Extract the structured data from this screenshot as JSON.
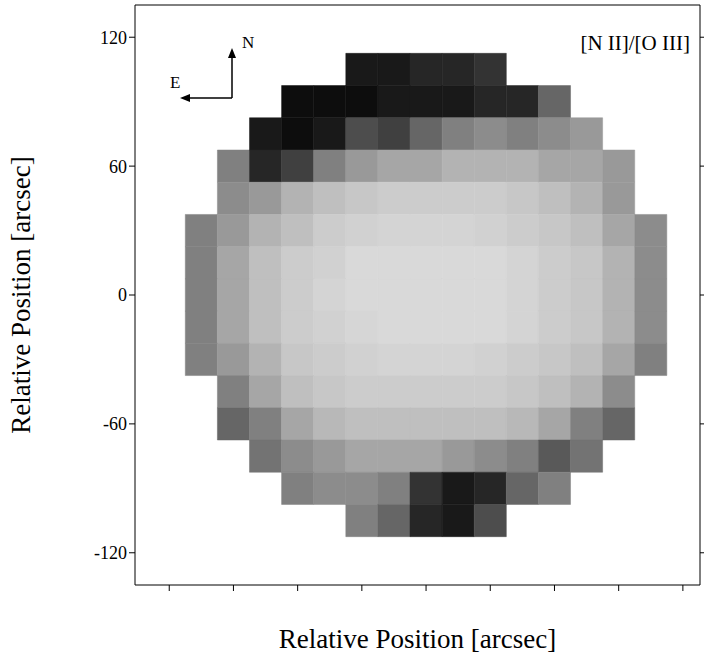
{
  "chart_data": {
    "type": "heatmap",
    "x_label": "Relative Position [arcsec]",
    "y_label": "Relative Position [arcsec]",
    "annotation": "[N II]/[O III]",
    "compass": {
      "north_label": "N",
      "east_label": "E"
    },
    "xlim": [
      -136,
      128
    ],
    "ylim": [
      -135,
      135
    ],
    "xticks": [
      -120,
      -90,
      -60,
      -30,
      0,
      30,
      60,
      90,
      120
    ],
    "yticks": [
      -120,
      -60,
      0,
      60,
      120
    ],
    "tick_labels": "y",
    "cell_x": [
      -105,
      -90,
      -75,
      -60,
      -45,
      -30,
      -15,
      0,
      15,
      30,
      45,
      60,
      75,
      90,
      105
    ],
    "cell_y": [
      105,
      90,
      75,
      60,
      45,
      30,
      15,
      0,
      -15,
      -30,
      -45,
      -60,
      -75,
      -90,
      -105
    ],
    "cells": [
      [
        null,
        null,
        null,
        null,
        null,
        0.9,
        0.9,
        0.85,
        0.85,
        0.8,
        null,
        null,
        null,
        null,
        null
      ],
      [
        null,
        null,
        null,
        0.95,
        0.95,
        0.95,
        0.9,
        0.9,
        0.9,
        0.85,
        0.85,
        0.6,
        null,
        null,
        null
      ],
      [
        null,
        null,
        0.9,
        0.95,
        0.9,
        0.7,
        0.75,
        0.6,
        0.5,
        0.45,
        0.5,
        0.45,
        0.4,
        null,
        null
      ],
      [
        null,
        0.5,
        0.85,
        0.75,
        0.5,
        0.4,
        0.35,
        0.35,
        0.3,
        0.3,
        0.3,
        0.35,
        0.35,
        0.4,
        null
      ],
      [
        null,
        0.45,
        0.4,
        0.3,
        0.25,
        0.22,
        0.2,
        0.2,
        0.2,
        0.2,
        0.22,
        0.25,
        0.3,
        0.4,
        null
      ],
      [
        0.5,
        0.4,
        0.3,
        0.25,
        0.2,
        0.18,
        0.17,
        0.17,
        0.17,
        0.18,
        0.2,
        0.22,
        0.25,
        0.35,
        0.45
      ],
      [
        0.5,
        0.35,
        0.25,
        0.2,
        0.18,
        0.15,
        0.15,
        0.15,
        0.15,
        0.15,
        0.17,
        0.2,
        0.22,
        0.3,
        0.45
      ],
      [
        0.5,
        0.35,
        0.25,
        0.2,
        0.17,
        0.15,
        0.15,
        0.15,
        0.15,
        0.15,
        0.17,
        0.2,
        0.22,
        0.3,
        0.45
      ],
      [
        0.5,
        0.35,
        0.25,
        0.2,
        0.18,
        0.16,
        0.15,
        0.15,
        0.15,
        0.15,
        0.17,
        0.2,
        0.22,
        0.3,
        0.45
      ],
      [
        0.5,
        0.4,
        0.3,
        0.22,
        0.2,
        0.18,
        0.17,
        0.17,
        0.17,
        0.18,
        0.2,
        0.22,
        0.25,
        0.35,
        0.5
      ],
      [
        null,
        0.5,
        0.35,
        0.25,
        0.22,
        0.2,
        0.2,
        0.2,
        0.2,
        0.2,
        0.22,
        0.25,
        0.3,
        0.45,
        null
      ],
      [
        null,
        0.6,
        0.5,
        0.35,
        0.28,
        0.25,
        0.25,
        0.25,
        0.25,
        0.25,
        0.28,
        0.35,
        0.5,
        0.6,
        null
      ],
      [
        null,
        null,
        0.55,
        0.45,
        0.4,
        0.35,
        0.35,
        0.35,
        0.4,
        0.45,
        0.5,
        0.65,
        0.55,
        null,
        null
      ],
      [
        null,
        null,
        null,
        0.5,
        0.45,
        0.45,
        0.5,
        0.8,
        0.9,
        0.85,
        0.6,
        0.5,
        null,
        null,
        null
      ],
      [
        null,
        null,
        null,
        null,
        null,
        0.5,
        0.6,
        0.85,
        0.9,
        0.7,
        null,
        null,
        null,
        null,
        null
      ]
    ]
  }
}
